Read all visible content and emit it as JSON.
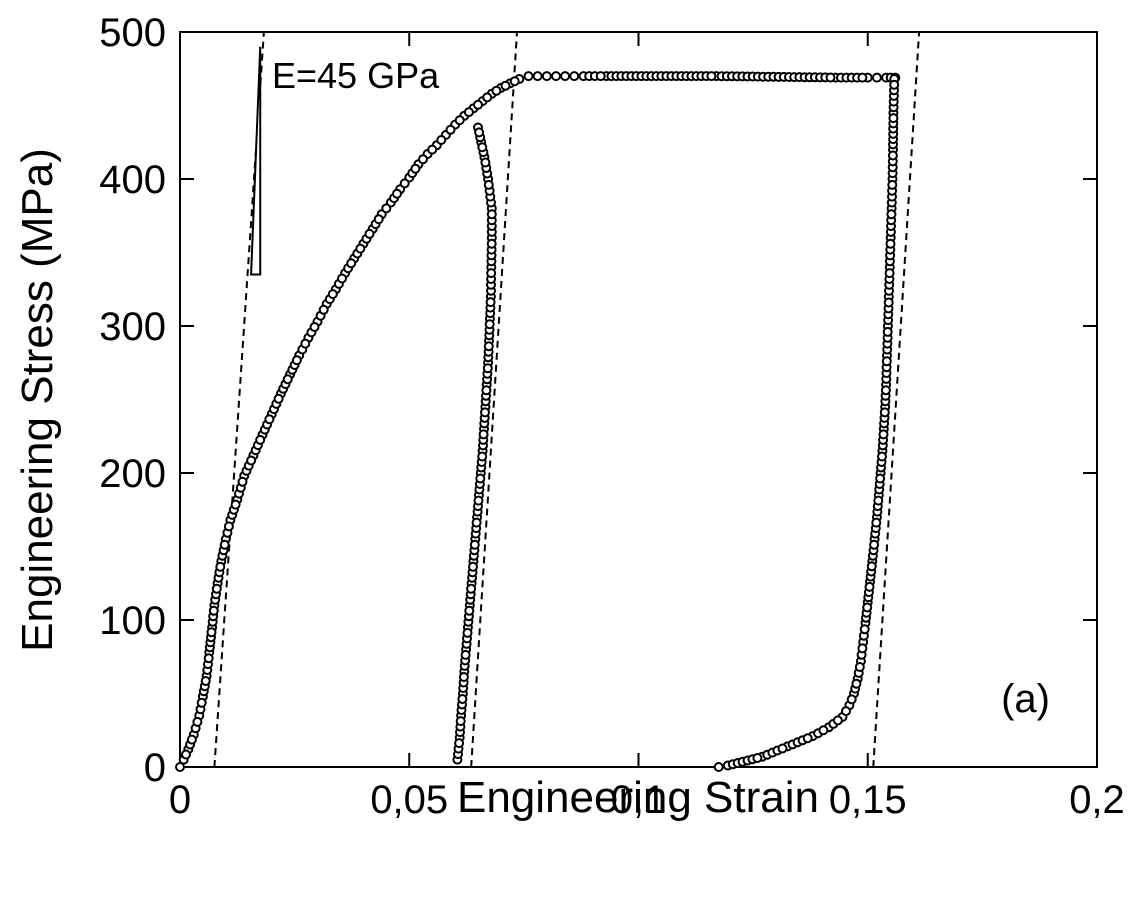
{
  "chart_data": {
    "type": "scatter",
    "title": "",
    "xlabel": "Engineering Strain",
    "ylabel": "Engineering Stress (MPa)",
    "xlim": [
      0,
      0.2
    ],
    "ylim": [
      0,
      500
    ],
    "xticks": [
      0,
      0.05,
      0.1,
      0.15,
      0.2
    ],
    "xtick_labels": [
      "0",
      "0,05",
      "0,1",
      "0,15",
      "0,2"
    ],
    "yticks": [
      0,
      100,
      200,
      300,
      400,
      500
    ],
    "ytick_labels": [
      "0",
      "100",
      "200",
      "300",
      "400",
      "500"
    ],
    "grid": false,
    "marker": "open-circle",
    "annotations": [
      {
        "text": "E=45 GPa",
        "type": "modulus-slope-triangle",
        "x": [
          0.0155,
          0.0175
        ],
        "y": [
          335,
          490
        ]
      },
      {
        "text": "(a)",
        "type": "panel-label",
        "location": "bottom-right"
      }
    ],
    "series": [
      {
        "x": [
          0,
          0.0008,
          0.0018,
          0.003,
          0.0042,
          0.005,
          0.0058,
          0.0064,
          0.007,
          0.0075,
          0.0082,
          0.009,
          0.01,
          0.011,
          0.0125,
          0.014,
          0.016,
          0.018,
          0.02,
          0.022,
          0.024,
          0.026,
          0.028,
          0.03,
          0.032,
          0.034,
          0.036,
          0.038,
          0.04,
          0.042,
          0.044,
          0.046,
          0.048,
          0.05,
          0.052,
          0.054,
          0.056,
          0.058,
          0.06,
          0.062,
          0.064,
          0.066,
          0.068,
          0.07,
          0.072,
          0.074,
          0.076,
          0.078,
          0.08,
          0.082,
          0.084,
          0.086,
          0.088,
          0.093,
          0.117,
          0.143,
          0.15,
          0.152,
          0.154,
          0.155,
          0.156
        ],
        "y": [
          0,
          5,
          12,
          22,
          35,
          48,
          62,
          78,
          95,
          110,
          125,
          140,
          155,
          168,
          182,
          198,
          212,
          226,
          240,
          254,
          267,
          280,
          292,
          303,
          315,
          325,
          336,
          346,
          356,
          366,
          376,
          384,
          393,
          401,
          410,
          417,
          423,
          430,
          437,
          443,
          448,
          453,
          458,
          462,
          465,
          468,
          470,
          470,
          470,
          470,
          470,
          470,
          470,
          470,
          470,
          469,
          469,
          469,
          469,
          469,
          469
        ]
      },
      {
        "x": [
          0.0605,
          0.061,
          0.0613,
          0.0617,
          0.062,
          0.0624,
          0.0628,
          0.0632,
          0.0636,
          0.064,
          0.0644,
          0.0648,
          0.0652,
          0.0656,
          0.066,
          0.0663,
          0.0666,
          0.0669,
          0.0672,
          0.0674,
          0.0676,
          0.0678,
          0.0679,
          0.068,
          0.068,
          0.0672,
          0.0664,
          0.0657,
          0.065
        ],
        "y": [
          5,
          20,
          35,
          50,
          65,
          80,
          95,
          110,
          125,
          140,
          155,
          170,
          185,
          200,
          215,
          230,
          245,
          260,
          275,
          290,
          305,
          320,
          340,
          360,
          380,
          400,
          415,
          425,
          435
        ]
      },
      {
        "x": [
          0.1175,
          0.1195,
          0.127,
          0.1325,
          0.138,
          0.1415,
          0.1445,
          0.146,
          0.147,
          0.1478,
          0.1485,
          0.149,
          0.1495,
          0.15,
          0.1505,
          0.151,
          0.1515,
          0.152,
          0.1524,
          0.1528,
          0.1532,
          0.1535,
          0.1538,
          0.154,
          0.1542,
          0.1544,
          0.1546,
          0.1548,
          0.155,
          0.1552,
          0.1554,
          0.1555,
          0.1556,
          0.1558
        ],
        "y": [
          0,
          1,
          7,
          14,
          21,
          27,
          34,
          42,
          50,
          60,
          72,
          85,
          98,
          112,
          126,
          140,
          155,
          170,
          185,
          200,
          215,
          230,
          245,
          260,
          280,
          300,
          320,
          340,
          360,
          380,
          400,
          420,
          445,
          468
        ]
      }
    ],
    "guide_lines": [
      {
        "style": "dashed",
        "x": [
          0.0075,
          0.0183
        ],
        "y": [
          0,
          500
        ]
      },
      {
        "style": "dashed",
        "x": [
          0.0635,
          0.0735
        ],
        "y": [
          0,
          500
        ]
      },
      {
        "style": "dashed",
        "x": [
          0.1512,
          0.1612
        ],
        "y": [
          0,
          500
        ]
      }
    ]
  }
}
